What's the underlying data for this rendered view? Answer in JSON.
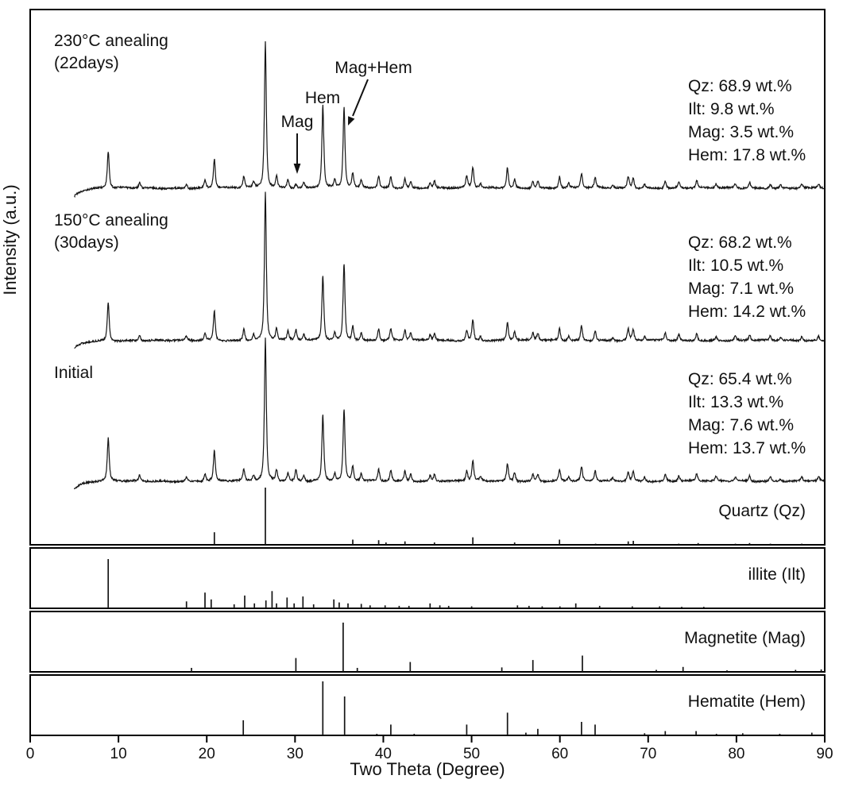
{
  "chart_data": {
    "type": "line",
    "xlabel": "Two Theta (Degree)",
    "ylabel": "Intensity (a.u.)",
    "xlim": [
      0,
      90
    ],
    "x_ticks": [
      0,
      10,
      20,
      30,
      40,
      50,
      60,
      70,
      80,
      90
    ],
    "series": [
      {
        "name": "annealed-230C",
        "label_line1": "230°C anealing",
        "label_line2": "(22days)",
        "composition": [
          "Qz: 68.9 wt.%",
          "Ilt: 9.8 wt.%",
          "Mag: 3.5 wt.%",
          "Hem: 17.8 wt.%"
        ],
        "peaks": [
          [
            8.84,
            25
          ],
          [
            12.4,
            4
          ],
          [
            17.7,
            3
          ],
          [
            19.8,
            5
          ],
          [
            20.86,
            20
          ],
          [
            24.2,
            8
          ],
          [
            25.3,
            4
          ],
          [
            26.64,
            100
          ],
          [
            27.9,
            8
          ],
          [
            29.2,
            6
          ],
          [
            30.1,
            3
          ],
          [
            31.0,
            4
          ],
          [
            33.15,
            57
          ],
          [
            34.5,
            5
          ],
          [
            35.55,
            55
          ],
          [
            36.54,
            10
          ],
          [
            37.5,
            5
          ],
          [
            39.47,
            8
          ],
          [
            40.85,
            8
          ],
          [
            42.45,
            7
          ],
          [
            43.1,
            4
          ],
          [
            45.3,
            4
          ],
          [
            45.79,
            5
          ],
          [
            49.45,
            8
          ],
          [
            50.14,
            14
          ],
          [
            51.0,
            3
          ],
          [
            54.06,
            14
          ],
          [
            54.87,
            6
          ],
          [
            56.94,
            5
          ],
          [
            57.5,
            5
          ],
          [
            59.96,
            8
          ],
          [
            61.0,
            3
          ],
          [
            62.45,
            10
          ],
          [
            64.0,
            7
          ],
          [
            66.0,
            2
          ],
          [
            67.74,
            8
          ],
          [
            68.3,
            7
          ],
          [
            69.6,
            3
          ],
          [
            71.94,
            5
          ],
          [
            73.47,
            4
          ],
          [
            75.5,
            5
          ],
          [
            77.7,
            3
          ],
          [
            79.88,
            3
          ],
          [
            81.49,
            4
          ],
          [
            83.84,
            3
          ],
          [
            85.0,
            2
          ],
          [
            87.4,
            3
          ],
          [
            89.3,
            3
          ]
        ]
      },
      {
        "name": "annealed-150C",
        "label_line1": "150°C anealing",
        "label_line2": "(30days)",
        "composition": [
          "Qz: 68.2 wt.%",
          "Ilt: 10.5 wt.%",
          "Mag: 7.1 wt.%",
          "Hem: 14.2 wt.%"
        ],
        "peaks": [
          [
            8.84,
            26
          ],
          [
            12.4,
            4
          ],
          [
            17.7,
            3
          ],
          [
            19.8,
            5
          ],
          [
            20.86,
            20
          ],
          [
            24.2,
            8
          ],
          [
            25.3,
            4
          ],
          [
            26.64,
            100
          ],
          [
            27.9,
            8
          ],
          [
            29.2,
            6
          ],
          [
            30.1,
            7
          ],
          [
            31.0,
            4
          ],
          [
            33.15,
            44
          ],
          [
            34.5,
            5
          ],
          [
            35.55,
            52
          ],
          [
            36.54,
            10
          ],
          [
            37.5,
            5
          ],
          [
            39.47,
            8
          ],
          [
            40.85,
            8
          ],
          [
            42.45,
            7
          ],
          [
            43.1,
            5
          ],
          [
            45.3,
            4
          ],
          [
            45.79,
            5
          ],
          [
            49.45,
            7
          ],
          [
            50.14,
            14
          ],
          [
            51.0,
            3
          ],
          [
            54.06,
            12
          ],
          [
            54.87,
            6
          ],
          [
            56.94,
            5
          ],
          [
            57.5,
            5
          ],
          [
            59.96,
            8
          ],
          [
            61.0,
            3
          ],
          [
            62.45,
            10
          ],
          [
            64.0,
            7
          ],
          [
            66.0,
            2
          ],
          [
            67.74,
            8
          ],
          [
            68.3,
            7
          ],
          [
            69.6,
            3
          ],
          [
            71.94,
            5
          ],
          [
            73.47,
            4
          ],
          [
            75.5,
            5
          ],
          [
            77.7,
            3
          ],
          [
            79.88,
            3
          ],
          [
            81.49,
            4
          ],
          [
            83.84,
            3
          ],
          [
            85.0,
            2
          ],
          [
            87.4,
            3
          ],
          [
            89.3,
            3
          ]
        ]
      },
      {
        "name": "initial",
        "label_line1": "Initial",
        "label_line2": "",
        "composition": [
          "Qz: 65.4 wt.%",
          "Ilt: 13.3 wt.%",
          "Mag: 7.6 wt.%",
          "Hem: 13.7 wt.%"
        ],
        "peaks": [
          [
            8.84,
            30
          ],
          [
            12.4,
            4
          ],
          [
            17.7,
            3
          ],
          [
            19.8,
            5
          ],
          [
            20.86,
            21
          ],
          [
            24.2,
            8
          ],
          [
            25.3,
            4
          ],
          [
            26.64,
            100
          ],
          [
            27.9,
            8
          ],
          [
            29.2,
            6
          ],
          [
            30.1,
            8
          ],
          [
            31.0,
            4
          ],
          [
            33.15,
            46
          ],
          [
            34.5,
            5
          ],
          [
            35.55,
            50
          ],
          [
            36.54,
            10
          ],
          [
            37.5,
            5
          ],
          [
            39.47,
            8
          ],
          [
            40.85,
            8
          ],
          [
            42.45,
            7
          ],
          [
            43.1,
            5
          ],
          [
            45.3,
            4
          ],
          [
            45.79,
            5
          ],
          [
            49.45,
            7
          ],
          [
            50.14,
            14
          ],
          [
            51.0,
            3
          ],
          [
            54.06,
            12
          ],
          [
            54.87,
            6
          ],
          [
            56.94,
            5
          ],
          [
            57.5,
            5
          ],
          [
            59.96,
            8
          ],
          [
            61.0,
            3
          ],
          [
            62.45,
            10
          ],
          [
            64.0,
            7
          ],
          [
            66.0,
            2
          ],
          [
            67.74,
            7
          ],
          [
            68.3,
            7
          ],
          [
            69.6,
            3
          ],
          [
            71.94,
            5
          ],
          [
            73.47,
            4
          ],
          [
            75.5,
            5
          ],
          [
            77.7,
            3
          ],
          [
            79.88,
            3
          ],
          [
            81.49,
            4
          ],
          [
            83.84,
            3
          ],
          [
            85.0,
            2
          ],
          [
            87.4,
            3
          ],
          [
            89.3,
            3
          ]
        ]
      }
    ],
    "reference_patterns": [
      {
        "name": "quartz",
        "label": "Quartz (Qz)",
        "peaks": [
          [
            20.86,
            22
          ],
          [
            26.64,
            100
          ],
          [
            36.54,
            9
          ],
          [
            39.47,
            8
          ],
          [
            40.3,
            4
          ],
          [
            42.45,
            6
          ],
          [
            45.79,
            4
          ],
          [
            50.14,
            13
          ],
          [
            54.87,
            4
          ],
          [
            59.96,
            9
          ],
          [
            64.04,
            2
          ],
          [
            67.74,
            6
          ],
          [
            68.32,
            7
          ],
          [
            73.47,
            2
          ],
          [
            75.66,
            3
          ],
          [
            79.88,
            2
          ],
          [
            81.49,
            3
          ],
          [
            83.84,
            2
          ],
          [
            87.4,
            2
          ]
        ]
      },
      {
        "name": "illite",
        "label": "illite (Ilt)",
        "peaks": [
          [
            8.84,
            100
          ],
          [
            17.7,
            14
          ],
          [
            19.8,
            32
          ],
          [
            20.5,
            18
          ],
          [
            23.1,
            8
          ],
          [
            24.3,
            26
          ],
          [
            25.4,
            10
          ],
          [
            26.7,
            16
          ],
          [
            27.4,
            35
          ],
          [
            27.9,
            10
          ],
          [
            29.1,
            22
          ],
          [
            29.9,
            10
          ],
          [
            30.9,
            24
          ],
          [
            32.1,
            8
          ],
          [
            34.4,
            18
          ],
          [
            35.0,
            12
          ],
          [
            36.0,
            10
          ],
          [
            37.5,
            9
          ],
          [
            38.5,
            6
          ],
          [
            40.2,
            6
          ],
          [
            41.8,
            5
          ],
          [
            42.9,
            5
          ],
          [
            45.3,
            10
          ],
          [
            46.4,
            6
          ],
          [
            47.4,
            5
          ],
          [
            50.0,
            4
          ],
          [
            55.2,
            6
          ],
          [
            56.5,
            5
          ],
          [
            58.0,
            4
          ],
          [
            60.0,
            4
          ],
          [
            61.8,
            10
          ],
          [
            64.5,
            5
          ],
          [
            68.2,
            4
          ],
          [
            71.3,
            4
          ],
          [
            73.8,
            3
          ],
          [
            76.3,
            3
          ]
        ]
      },
      {
        "name": "magnetite",
        "label": "Magnetite (Mag)",
        "peaks": [
          [
            18.27,
            8
          ],
          [
            30.1,
            28
          ],
          [
            35.45,
            100
          ],
          [
            37.05,
            8
          ],
          [
            43.05,
            20
          ],
          [
            53.42,
            9
          ],
          [
            56.94,
            24
          ],
          [
            62.55,
            33
          ],
          [
            65.74,
            2
          ],
          [
            70.92,
            4
          ],
          [
            73.95,
            10
          ],
          [
            78.93,
            3
          ],
          [
            86.7,
            4
          ],
          [
            89.6,
            5
          ]
        ]
      },
      {
        "name": "hematite",
        "label": "Hematite (Hem)",
        "peaks": [
          [
            24.14,
            28
          ],
          [
            33.15,
            100
          ],
          [
            35.61,
            72
          ],
          [
            39.27,
            3
          ],
          [
            40.85,
            20
          ],
          [
            43.5,
            3
          ],
          [
            49.45,
            20
          ],
          [
            54.06,
            42
          ],
          [
            56.15,
            5
          ],
          [
            57.5,
            12
          ],
          [
            62.45,
            25
          ],
          [
            63.99,
            20
          ],
          [
            69.6,
            4
          ],
          [
            71.94,
            8
          ],
          [
            75.43,
            8
          ],
          [
            77.73,
            3
          ],
          [
            80.71,
            4
          ],
          [
            84.91,
            3
          ],
          [
            88.54,
            5
          ]
        ]
      }
    ],
    "peak_annotations": [
      {
        "text": "Mag",
        "two_theta": 30.1
      },
      {
        "text": "Hem",
        "two_theta": 33.15
      },
      {
        "text": "Mag+Hem",
        "two_theta": 35.55
      }
    ]
  }
}
